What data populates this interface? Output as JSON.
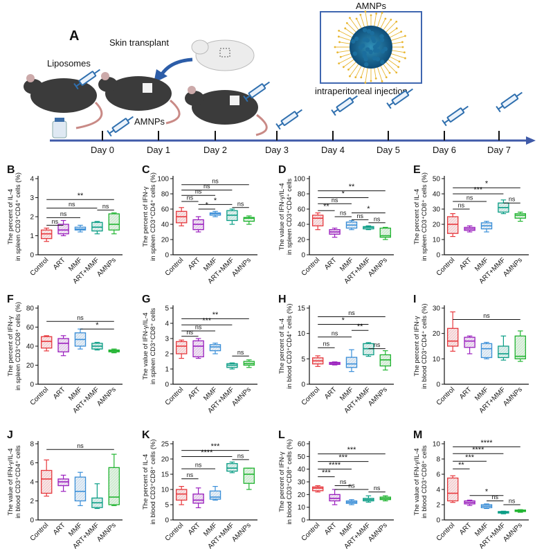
{
  "panel_a": {
    "letter": "A",
    "liposomes": "Liposomes",
    "skin_transplant": "Skin transplant",
    "amnps_top": "AMNPs",
    "amnps_day1": "AMNPs",
    "injection": "intraperitoneal injection",
    "days": [
      "Day 0",
      "Day 1",
      "Day 2",
      "Day 3",
      "Day 4",
      "Day 5",
      "Day 6",
      "Day 7"
    ]
  },
  "groups": [
    "Control",
    "ART",
    "MMF",
    "ART+MMF",
    "AMNPs"
  ],
  "colors": [
    "#e8383d",
    "#9b1fbf",
    "#3a8fd9",
    "#0a9e86",
    "#21b531"
  ],
  "chart_data": [
    {
      "letter": "B",
      "type": "box",
      "ylabel": [
        "The percent of IL-4",
        "in spleen CD3⁺CD4⁺ cells (%)"
      ],
      "ylim": [
        0,
        4
      ],
      "yticks": [
        0,
        1,
        2,
        3,
        4
      ],
      "boxes": [
        [
          0.7,
          0.85,
          1.1,
          1.3,
          1.4
        ],
        [
          1.0,
          1.1,
          1.3,
          1.6,
          1.8
        ],
        [
          1.2,
          1.3,
          1.35,
          1.45,
          1.55
        ],
        [
          1.1,
          1.25,
          1.45,
          1.7,
          1.75
        ],
        [
          1.1,
          1.3,
          1.6,
          2.15,
          2.2
        ]
      ],
      "sig": [
        {
          "a": 0,
          "b": 4,
          "label": "**",
          "y": 2.9
        },
        {
          "a": 0,
          "b": 3,
          "label": "ns",
          "y": 2.45
        },
        {
          "a": 3,
          "b": 4,
          "label": "ns",
          "y": 2.35
        },
        {
          "a": 0,
          "b": 2,
          "label": "ns",
          "y": 1.95
        },
        {
          "a": 0,
          "b": 1,
          "label": "ns",
          "y": 1.55
        }
      ]
    },
    {
      "letter": "C",
      "type": "box",
      "ylabel": [
        "The percent of IFN-γ",
        "in spleen CD3⁺CD4⁺ cells (%)"
      ],
      "ylim": [
        0,
        100
      ],
      "yticks": [
        0,
        20,
        40,
        60,
        80,
        100
      ],
      "boxes": [
        [
          38,
          42,
          50,
          57,
          62
        ],
        [
          30,
          33,
          40,
          46,
          50
        ],
        [
          50,
          52,
          54,
          55,
          57
        ],
        [
          40,
          45,
          52,
          58,
          60
        ],
        [
          40,
          44,
          48,
          49,
          51
        ]
      ],
      "sig": [
        {
          "a": 0,
          "b": 4,
          "label": "ns",
          "y": 92
        },
        {
          "a": 0,
          "b": 3,
          "label": "ns",
          "y": 85
        },
        {
          "a": 0,
          "b": 2,
          "label": "ns",
          "y": 78
        },
        {
          "a": 0,
          "b": 1,
          "label": "ns",
          "y": 70
        },
        {
          "a": 1,
          "b": 3,
          "label": "*",
          "y": 66
        },
        {
          "a": 1,
          "b": 2,
          "label": "*",
          "y": 60
        },
        {
          "a": 3,
          "b": 4,
          "label": "ns",
          "y": 62
        }
      ]
    },
    {
      "letter": "D",
      "type": "box",
      "ylabel": [
        "The value of IFN-γ/IL-4",
        "in spleen CD3⁺CD4⁺ cells"
      ],
      "ylim": [
        0,
        100
      ],
      "yticks": [
        0,
        20,
        40,
        60,
        80,
        100
      ],
      "boxes": [
        [
          33,
          38,
          48,
          52,
          55
        ],
        [
          23,
          27,
          30,
          33,
          35
        ],
        [
          33,
          35,
          39,
          43,
          45
        ],
        [
          33,
          34,
          36,
          37,
          38
        ],
        [
          20,
          23,
          25,
          35,
          36
        ]
      ],
      "sig": [
        {
          "a": 0,
          "b": 4,
          "label": "**",
          "y": 84
        },
        {
          "a": 0,
          "b": 3,
          "label": "*",
          "y": 75
        },
        {
          "a": 0,
          "b": 2,
          "label": "ns",
          "y": 67
        },
        {
          "a": 0,
          "b": 1,
          "label": "**",
          "y": 58
        },
        {
          "a": 2,
          "b": 4,
          "label": "*",
          "y": 55
        },
        {
          "a": 1,
          "b": 2,
          "label": "ns",
          "y": 50
        },
        {
          "a": 2,
          "b": 3,
          "label": "ns",
          "y": 46
        },
        {
          "a": 3,
          "b": 4,
          "label": "ns",
          "y": 42
        }
      ]
    },
    {
      "letter": "E",
      "type": "box",
      "ylabel": [
        "The percent of IL-4",
        "in spleen CD3⁺CD8⁺ cells (%)"
      ],
      "ylim": [
        0,
        50
      ],
      "yticks": [
        0,
        10,
        20,
        30,
        40,
        50
      ],
      "boxes": [
        [
          12,
          14,
          20,
          25,
          27
        ],
        [
          15,
          16,
          17,
          18,
          19
        ],
        [
          15,
          17,
          19,
          21,
          22
        ],
        [
          27,
          28,
          31,
          34,
          36
        ],
        [
          22,
          24,
          26,
          27,
          28
        ]
      ],
      "sig": [
        {
          "a": 0,
          "b": 4,
          "label": "*",
          "y": 44
        },
        {
          "a": 0,
          "b": 3,
          "label": "***",
          "y": 40
        },
        {
          "a": 0,
          "b": 2,
          "label": "ns",
          "y": 35
        },
        {
          "a": 3,
          "b": 4,
          "label": "ns",
          "y": 34
        },
        {
          "a": 0,
          "b": 1,
          "label": "ns",
          "y": 30
        }
      ]
    },
    {
      "letter": "F",
      "type": "box",
      "ylabel": [
        "The percent of IFN-γ",
        "in spleen CD3⁺CD8⁺ cells (%)"
      ],
      "ylim": [
        0,
        80
      ],
      "yticks": [
        0,
        20,
        40,
        60,
        80
      ],
      "boxes": [
        [
          35,
          38,
          45,
          50,
          51
        ],
        [
          30,
          34,
          43,
          48,
          51
        ],
        [
          37,
          40,
          47,
          54,
          58
        ],
        [
          36,
          37,
          40,
          43,
          44
        ],
        [
          33,
          34,
          35,
          36,
          37
        ]
      ],
      "sig": [
        {
          "a": 0,
          "b": 4,
          "label": "ns",
          "y": 66
        },
        {
          "a": 2,
          "b": 4,
          "label": "*",
          "y": 58
        }
      ]
    },
    {
      "letter": "G",
      "type": "box",
      "ylabel": [
        "The value of IFN-γ/IL-4",
        "in spleen CD3⁺CD8⁺ cells"
      ],
      "ylim": [
        0,
        5
      ],
      "yticks": [
        0,
        1,
        2,
        3,
        4,
        5
      ],
      "boxes": [
        [
          1.7,
          2.0,
          2.5,
          2.8,
          2.9
        ],
        [
          1.7,
          1.8,
          2.5,
          2.85,
          3.0
        ],
        [
          2.0,
          2.2,
          2.45,
          2.6,
          2.7
        ],
        [
          1.0,
          1.1,
          1.25,
          1.35,
          1.4
        ],
        [
          1.1,
          1.25,
          1.35,
          1.5,
          1.6
        ]
      ],
      "sig": [
        {
          "a": 0,
          "b": 4,
          "label": "**",
          "y": 4.3
        },
        {
          "a": 0,
          "b": 3,
          "label": "***",
          "y": 3.9
        },
        {
          "a": 0,
          "b": 2,
          "label": "ns",
          "y": 3.5
        },
        {
          "a": 0,
          "b": 1,
          "label": "ns",
          "y": 3.15
        },
        {
          "a": 3,
          "b": 4,
          "label": "ns",
          "y": 1.85
        }
      ]
    },
    {
      "letter": "H",
      "type": "box",
      "ylabel": [
        "The percent of IL-4",
        "in blood CD3⁺CD4⁺ cells (%)"
      ],
      "ylim": [
        0,
        15
      ],
      "yticks": [
        0,
        5,
        10,
        15
      ],
      "boxes": [
        [
          3.5,
          4.0,
          4.6,
          5.2,
          5.6
        ],
        [
          3.8,
          3.9,
          4.1,
          4.3,
          4.4
        ],
        [
          2.5,
          3.3,
          4.0,
          5.3,
          6.8
        ],
        [
          5.5,
          5.8,
          7.0,
          8.0,
          8.2
        ],
        [
          2.8,
          3.6,
          4.8,
          5.8,
          6.6
        ]
      ],
      "sig": [
        {
          "a": 0,
          "b": 4,
          "label": "ns",
          "y": 13.3
        },
        {
          "a": 0,
          "b": 3,
          "label": "*",
          "y": 11.8
        },
        {
          "a": 2,
          "b": 3,
          "label": "**",
          "y": 10.6
        },
        {
          "a": 0,
          "b": 2,
          "label": "ns",
          "y": 9.3
        },
        {
          "a": 0,
          "b": 1,
          "label": "ns",
          "y": 7.2
        },
        {
          "a": 3,
          "b": 4,
          "label": "ns",
          "y": 7.0
        }
      ]
    },
    {
      "letter": "I",
      "type": "box",
      "ylabel": [
        "The percent of IFN-γ",
        "in blood CD3⁺CD4⁺ cells (%)"
      ],
      "ylim": [
        0,
        30
      ],
      "yticks": [
        0,
        10,
        20,
        30
      ],
      "boxes": [
        [
          13,
          15,
          17,
          22,
          28.5
        ],
        [
          12,
          14.5,
          17,
          18.5,
          19
        ],
        [
          10,
          10.5,
          14,
          16,
          16.5
        ],
        [
          9.5,
          10.5,
          12,
          15,
          19
        ],
        [
          9,
          10,
          11,
          19,
          21
        ]
      ],
      "sig": [
        {
          "a": 0,
          "b": 4,
          "label": "ns",
          "y": 25.5
        }
      ]
    },
    {
      "letter": "J",
      "type": "box",
      "ylabel": [
        "The value of IFN-γ/IL-4",
        "in blood CD3⁺CD4⁺ cells"
      ],
      "ylim": [
        0,
        8
      ],
      "yticks": [
        0,
        2,
        4,
        6,
        8
      ],
      "boxes": [
        [
          2.5,
          2.8,
          4.3,
          5.2,
          6.3
        ],
        [
          3.0,
          3.6,
          4.0,
          4.3,
          4.7
        ],
        [
          1.5,
          2.0,
          3.0,
          4.5,
          5.0
        ],
        [
          1.2,
          1.3,
          1.8,
          2.3,
          3.8
        ],
        [
          1.5,
          1.6,
          2.4,
          5.5,
          6.9
        ]
      ],
      "sig": [
        {
          "a": 0,
          "b": 4,
          "label": "ns",
          "y": 7.4
        }
      ]
    },
    {
      "letter": "K",
      "type": "box",
      "ylabel": [
        "The percent of IL-4",
        "in blood CD3⁺CD8⁺ cells (%)"
      ],
      "ylim": [
        0,
        25
      ],
      "yticks": [
        0,
        5,
        10,
        15,
        20,
        25
      ],
      "boxes": [
        [
          5,
          6.5,
          8.5,
          10,
          11
        ],
        [
          4,
          5.5,
          6.5,
          8.5,
          10.5
        ],
        [
          6.5,
          6.8,
          7.5,
          9.5,
          11
        ],
        [
          15.5,
          16,
          17,
          18.5,
          19
        ],
        [
          10,
          12,
          15,
          17,
          17
        ]
      ],
      "sig": [
        {
          "a": 0,
          "b": 4,
          "label": "***",
          "y": 22.8
        },
        {
          "a": 0,
          "b": 3,
          "label": "****",
          "y": 20.8
        },
        {
          "a": 3,
          "b": 4,
          "label": "ns",
          "y": 19.8
        },
        {
          "a": 0,
          "b": 2,
          "label": "ns",
          "y": 16.8
        },
        {
          "a": 0,
          "b": 1,
          "label": "ns",
          "y": 13.5
        }
      ]
    },
    {
      "letter": "L",
      "type": "box",
      "ylabel": [
        "The percent of IFN-γ",
        "in blood CD3⁺CD8⁺ cells (%)"
      ],
      "ylim": [
        0,
        60
      ],
      "yticks": [
        0,
        10,
        20,
        30,
        40,
        50,
        60
      ],
      "boxes": [
        [
          22,
          23,
          25,
          26,
          27
        ],
        [
          12,
          15,
          17,
          20,
          24
        ],
        [
          12,
          13,
          14,
          15,
          16
        ],
        [
          14,
          15,
          16,
          17,
          19
        ],
        [
          15,
          16,
          17,
          18,
          19
        ]
      ],
      "sig": [
        {
          "a": 0,
          "b": 4,
          "label": "***",
          "y": 52
        },
        {
          "a": 0,
          "b": 3,
          "label": "***",
          "y": 46
        },
        {
          "a": 0,
          "b": 2,
          "label": "****",
          "y": 40
        },
        {
          "a": 0,
          "b": 1,
          "label": "***",
          "y": 34
        },
        {
          "a": 1,
          "b": 2,
          "label": "ns",
          "y": 27
        },
        {
          "a": 1,
          "b": 3,
          "label": "ns",
          "y": 24
        },
        {
          "a": 3,
          "b": 4,
          "label": "ns",
          "y": 22
        }
      ]
    },
    {
      "letter": "M",
      "type": "box",
      "ylabel": [
        "The value of IFN-γ/IL-4",
        "in blood CD3⁺CD8⁺ cells"
      ],
      "ylim": [
        0,
        10
      ],
      "yticks": [
        0,
        2,
        4,
        6,
        8,
        10
      ],
      "boxes": [
        [
          2.3,
          2.5,
          3.5,
          5.5,
          5.8
        ],
        [
          1.9,
          2.1,
          2.3,
          2.5,
          2.6
        ],
        [
          1.5,
          1.6,
          1.8,
          2.0,
          2.1
        ],
        [
          0.8,
          0.9,
          1.0,
          1.1,
          1.15
        ],
        [
          1.0,
          1.1,
          1.2,
          1.3,
          1.35
        ]
      ],
      "sig": [
        {
          "a": 0,
          "b": 4,
          "label": "****",
          "y": 9.6
        },
        {
          "a": 0,
          "b": 3,
          "label": "****",
          "y": 8.7
        },
        {
          "a": 0,
          "b": 2,
          "label": "***",
          "y": 7.7
        },
        {
          "a": 0,
          "b": 1,
          "label": "**",
          "y": 6.7
        },
        {
          "a": 1,
          "b": 3,
          "label": "*",
          "y": 3.2
        },
        {
          "a": 2,
          "b": 3,
          "label": "ns",
          "y": 2.5
        },
        {
          "a": 3,
          "b": 4,
          "label": "ns",
          "y": 2.0
        }
      ]
    }
  ]
}
